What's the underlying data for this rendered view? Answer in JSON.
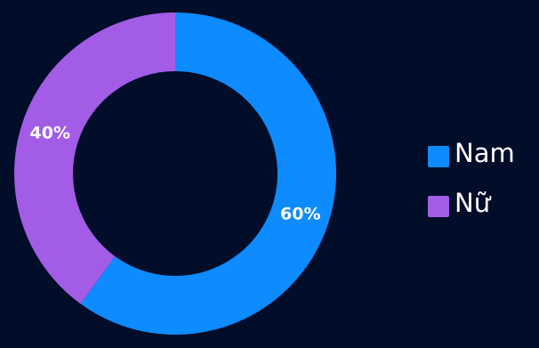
{
  "chart_data": {
    "type": "pie",
    "donut": true,
    "categories": [
      "Nam",
      "Nữ"
    ],
    "values": [
      60,
      40
    ],
    "value_labels": [
      "60%",
      "40%"
    ],
    "colors": [
      "#0d8bff",
      "#a25ce6"
    ],
    "legend_position": "right",
    "title": "",
    "start_angle": "top",
    "direction": "clockwise"
  },
  "background_color": "#020d2a"
}
